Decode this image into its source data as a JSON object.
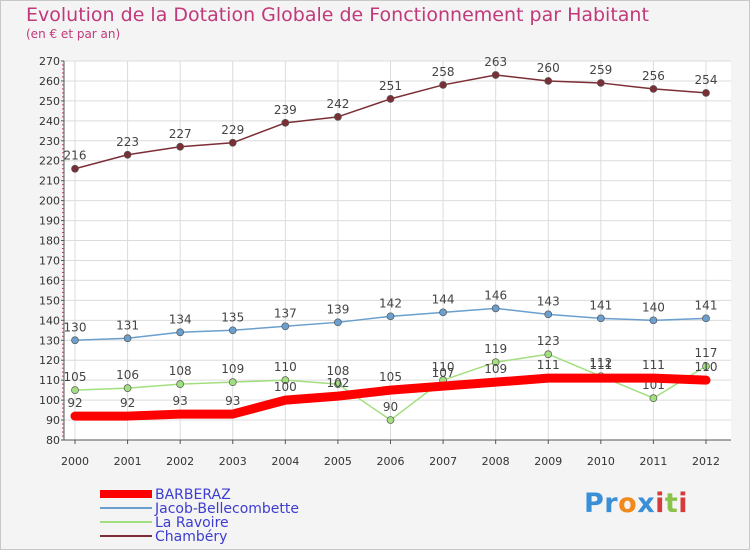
{
  "chart_data": {
    "type": "line",
    "title": "Evolution de la Dotation Globale de Fonctionnement par Habitant",
    "subtitle": "(en € et par an)",
    "xlabel": "",
    "ylabel": "",
    "ylim": [
      80,
      270
    ],
    "y_ticks": [
      80,
      90,
      100,
      110,
      120,
      130,
      140,
      150,
      160,
      170,
      180,
      190,
      200,
      210,
      220,
      230,
      240,
      250,
      260,
      270
    ],
    "categories": [
      "2000",
      "2001",
      "2002",
      "2003",
      "2004",
      "2005",
      "2006",
      "2007",
      "2008",
      "2009",
      "2010",
      "2011",
      "2012"
    ],
    "grid": true,
    "legend_position": "bottom-left",
    "series": [
      {
        "name": "BARBERAZ",
        "color": "#ff0000",
        "values": [
          92,
          92,
          93,
          93,
          100,
          102,
          105,
          107,
          109,
          111,
          111,
          111,
          110
        ]
      },
      {
        "name": "Jacob-Bellecombette",
        "color": "#6a9fce",
        "values": [
          130,
          131,
          134,
          135,
          137,
          139,
          142,
          144,
          146,
          143,
          141,
          140,
          141
        ]
      },
      {
        "name": "La Ravoire",
        "color": "#a2df7e",
        "values": [
          105,
          106,
          108,
          109,
          110,
          108,
          90,
          110,
          119,
          123,
          112,
          101,
          117
        ]
      },
      {
        "name": "Chambéry",
        "color": "#7c2e36",
        "values": [
          216,
          223,
          227,
          229,
          239,
          242,
          251,
          258,
          263,
          260,
          259,
          256,
          254
        ]
      }
    ]
  },
  "logo": {
    "text": "Proxiti",
    "letters": [
      "P",
      "r",
      "o",
      "x",
      "i",
      "t",
      "i"
    ],
    "colors": [
      "#3a8fd6",
      "#3a8fd6",
      "#f08a1c",
      "#3a8fd6",
      "#d63a3a",
      "#8bc34a",
      "#d63a3a"
    ]
  }
}
